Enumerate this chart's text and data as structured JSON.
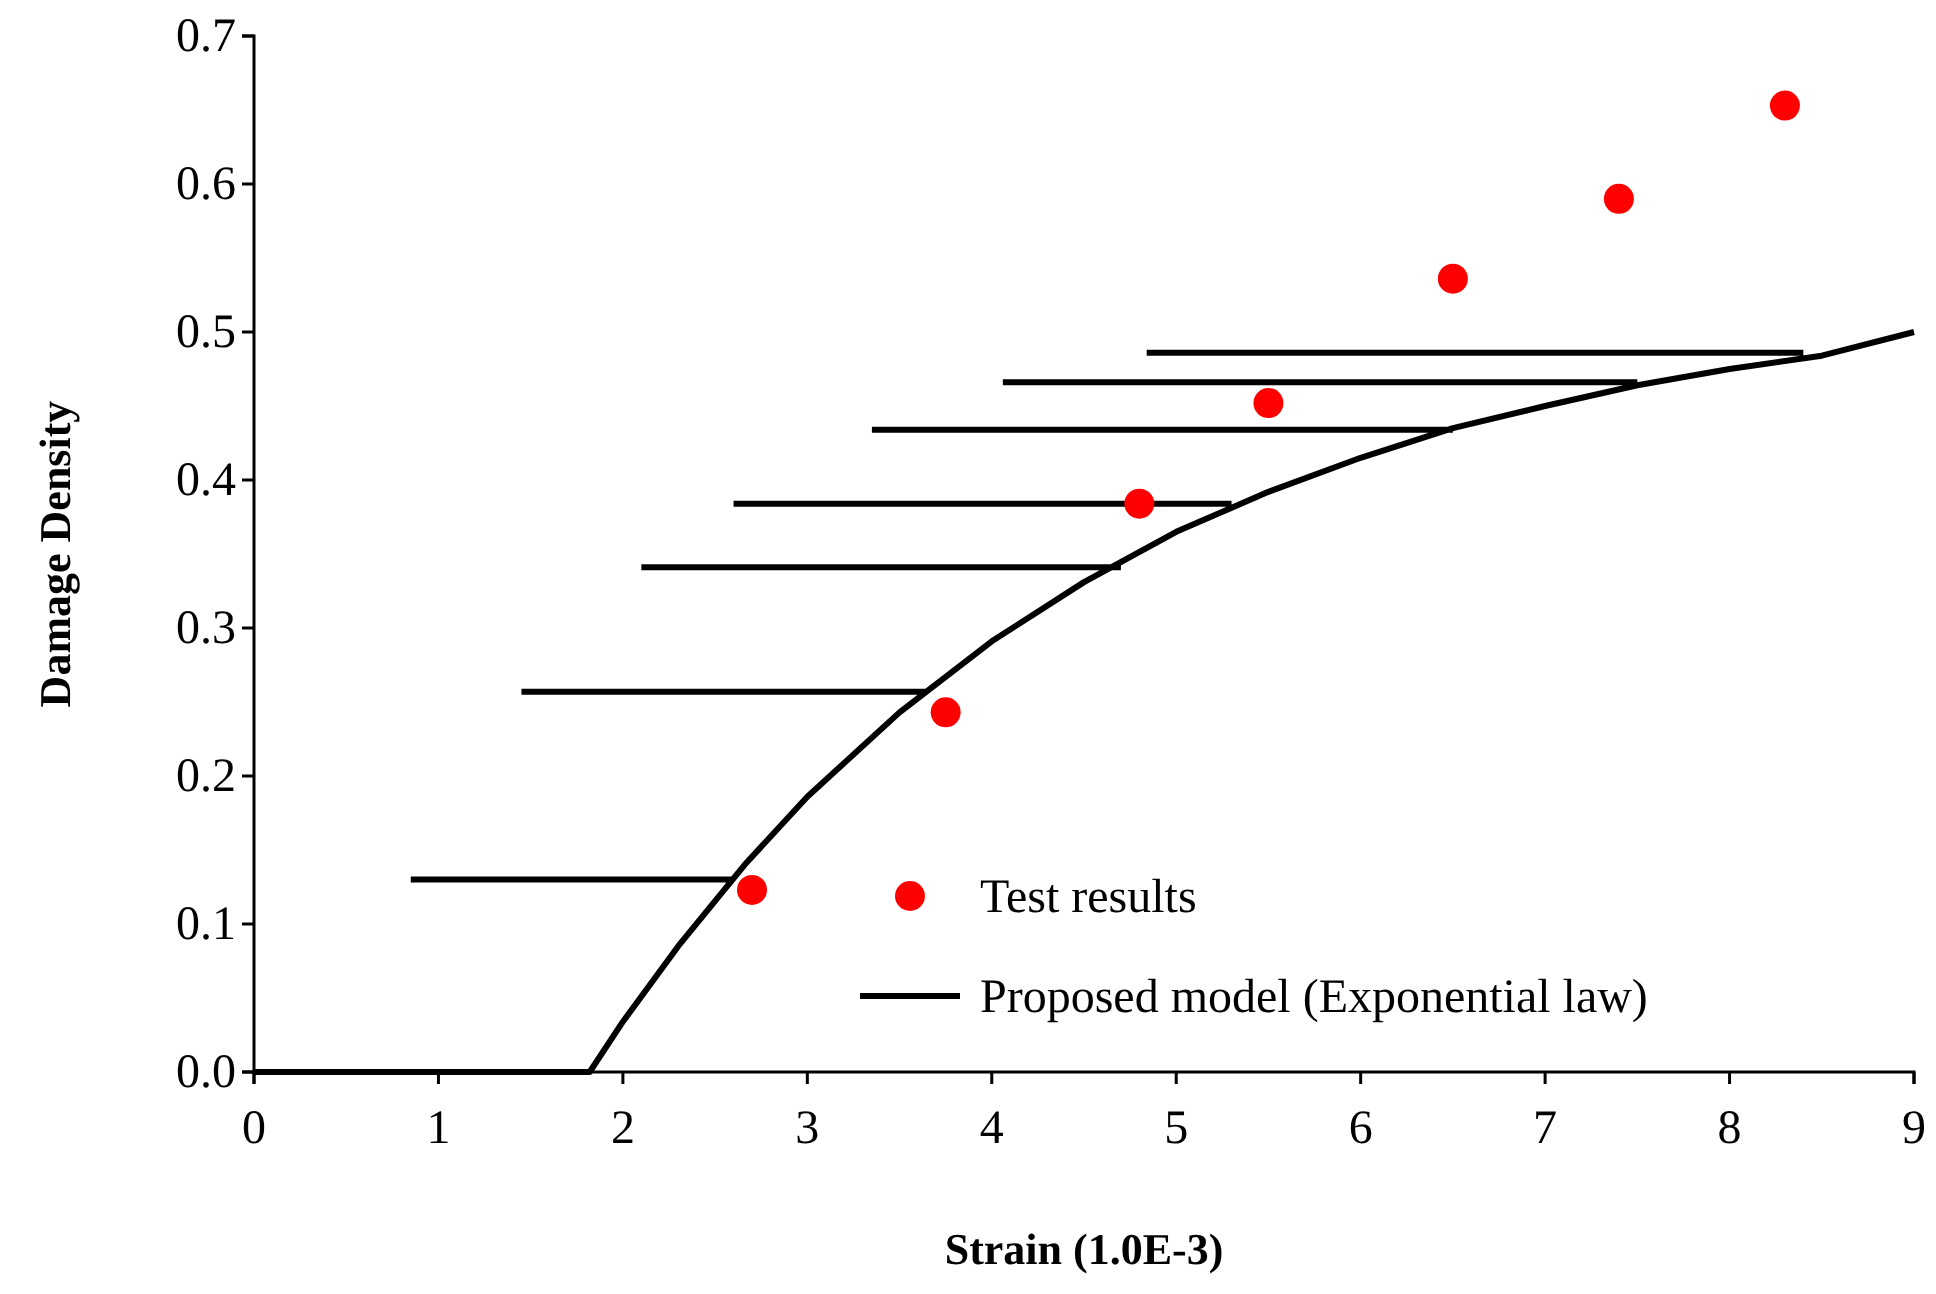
{
  "chart_data": {
    "type": "scatter",
    "xlabel": "Strain (1.0E-3)",
    "ylabel": "Damage Density",
    "xlim": [
      0,
      9
    ],
    "ylim": [
      0,
      0.7
    ],
    "xticks": [
      0,
      1,
      2,
      3,
      4,
      5,
      6,
      7,
      8,
      9
    ],
    "yticks": [
      {
        "value": 0,
        "label": "0.0"
      },
      {
        "value": 0.1,
        "label": "0.1"
      },
      {
        "value": 0.2,
        "label": "0.2"
      },
      {
        "value": 0.3,
        "label": "0.3"
      },
      {
        "value": 0.4,
        "label": "0.4"
      },
      {
        "value": 0.5,
        "label": "0.5"
      },
      {
        "value": 0.6,
        "label": "0.6"
      },
      {
        "value": 0.7,
        "label": "0.7"
      }
    ],
    "grid": false,
    "legend": "bottom right",
    "series": [
      {
        "name": "Test results",
        "marker": "circle",
        "color": "#ff0000",
        "x": [
          2.7,
          3.75,
          4.8,
          5.5,
          6.5,
          7.4,
          8.3
        ],
        "values": [
          0.123,
          0.243,
          0.384,
          0.452,
          0.536,
          0.59,
          0.653
        ]
      },
      {
        "name": "Proposed model (Exponential law)",
        "type": "line",
        "marker": "none",
        "line_style": "solid",
        "color": "#000000",
        "x": [
          0,
          1.82,
          2,
          2.3,
          2.66,
          3,
          3.5,
          4,
          4.5,
          5,
          5.5,
          6,
          6.5,
          7,
          7.5,
          8,
          8.5,
          9,
          null,
          0.85,
          2.6,
          null,
          1.45,
          3.65,
          null,
          2.1,
          4.7,
          null,
          2.6,
          5.3,
          null,
          3.35,
          6.5,
          null,
          4.06,
          7.5,
          null,
          4.84,
          8.4
        ],
        "values": [
          0,
          0,
          0.034,
          0.085,
          0.14,
          0.186,
          0.243,
          0.291,
          0.331,
          0.365,
          0.392,
          0.415,
          0.435,
          0.45,
          0.464,
          0.475,
          0.484,
          0.5,
          null,
          0.13,
          0.13,
          null,
          0.257,
          0.257,
          null,
          0.341,
          0.341,
          null,
          0.384,
          0.384,
          null,
          0.434,
          0.434,
          null,
          0.466,
          0.466,
          null,
          0.486,
          0.486
        ]
      }
    ]
  }
}
